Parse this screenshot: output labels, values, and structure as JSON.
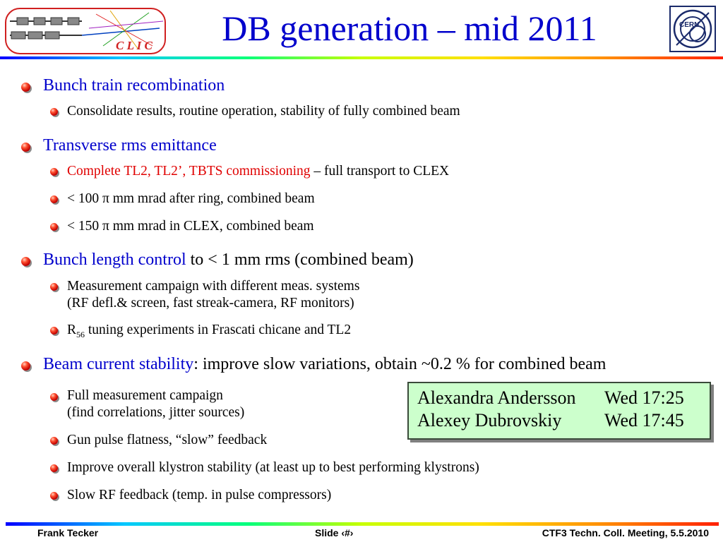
{
  "header": {
    "title": "DB generation – mid 2011",
    "logo_left_text": "C L I C"
  },
  "sections": [
    {
      "heading_blue": "Bunch train recombination",
      "heading_rest": "",
      "items": [
        {
          "main": "Consolidate results, routine operation, stability of fully combined beam"
        }
      ]
    },
    {
      "heading_blue": "Transverse rms emittance",
      "heading_rest": "",
      "items": [
        {
          "red": "Complete TL2, TL2’, TBTS commissioning",
          "main": " – full transport to CLEX"
        },
        {
          "main": "< 100 π mm mrad after ring, combined beam"
        },
        {
          "main": "< 150 π mm mrad in CLEX, combined beam"
        }
      ]
    },
    {
      "heading_blue": "Bunch length control",
      "heading_rest": " to < 1 mm rms (combined beam)",
      "items": [
        {
          "main": "Measurement campaign with different meas. systems",
          "line2": "(RF defl.& screen, fast streak-camera, RF monitors)"
        },
        {
          "r": "R",
          "sub": "56",
          "main": " tuning experiments in Frascati chicane and TL2"
        }
      ]
    },
    {
      "heading_blue": "Beam current stability",
      "heading_rest": ": improve slow variations, obtain ~0.2 % for combined beam",
      "items": [
        {
          "main": "Full measurement campaign",
          "line2": "(find correlations, jitter sources)"
        },
        {
          "main": "Gun pulse flatness, “slow” feedback"
        },
        {
          "main": "Improve overall klystron stability (at least up to best performing klystrons)"
        },
        {
          "main": "Slow RF feedback (temp. in pulse compressors)"
        }
      ]
    }
  ],
  "talks": [
    {
      "name": "Alexandra Andersson",
      "time": "Wed 17:25"
    },
    {
      "name": "Alexey Dubrovskiy",
      "time": "Wed 17:45"
    }
  ],
  "footer": {
    "author": "Frank Tecker",
    "slide": "Slide ‹#›",
    "meeting": "CTF3 Techn. Coll. Meeting, 5.5.2010"
  },
  "colors": {
    "heading": "#0000cc",
    "highlight": "#e00000",
    "box_bg": "#ccffcc",
    "bullet": "#d00000"
  }
}
